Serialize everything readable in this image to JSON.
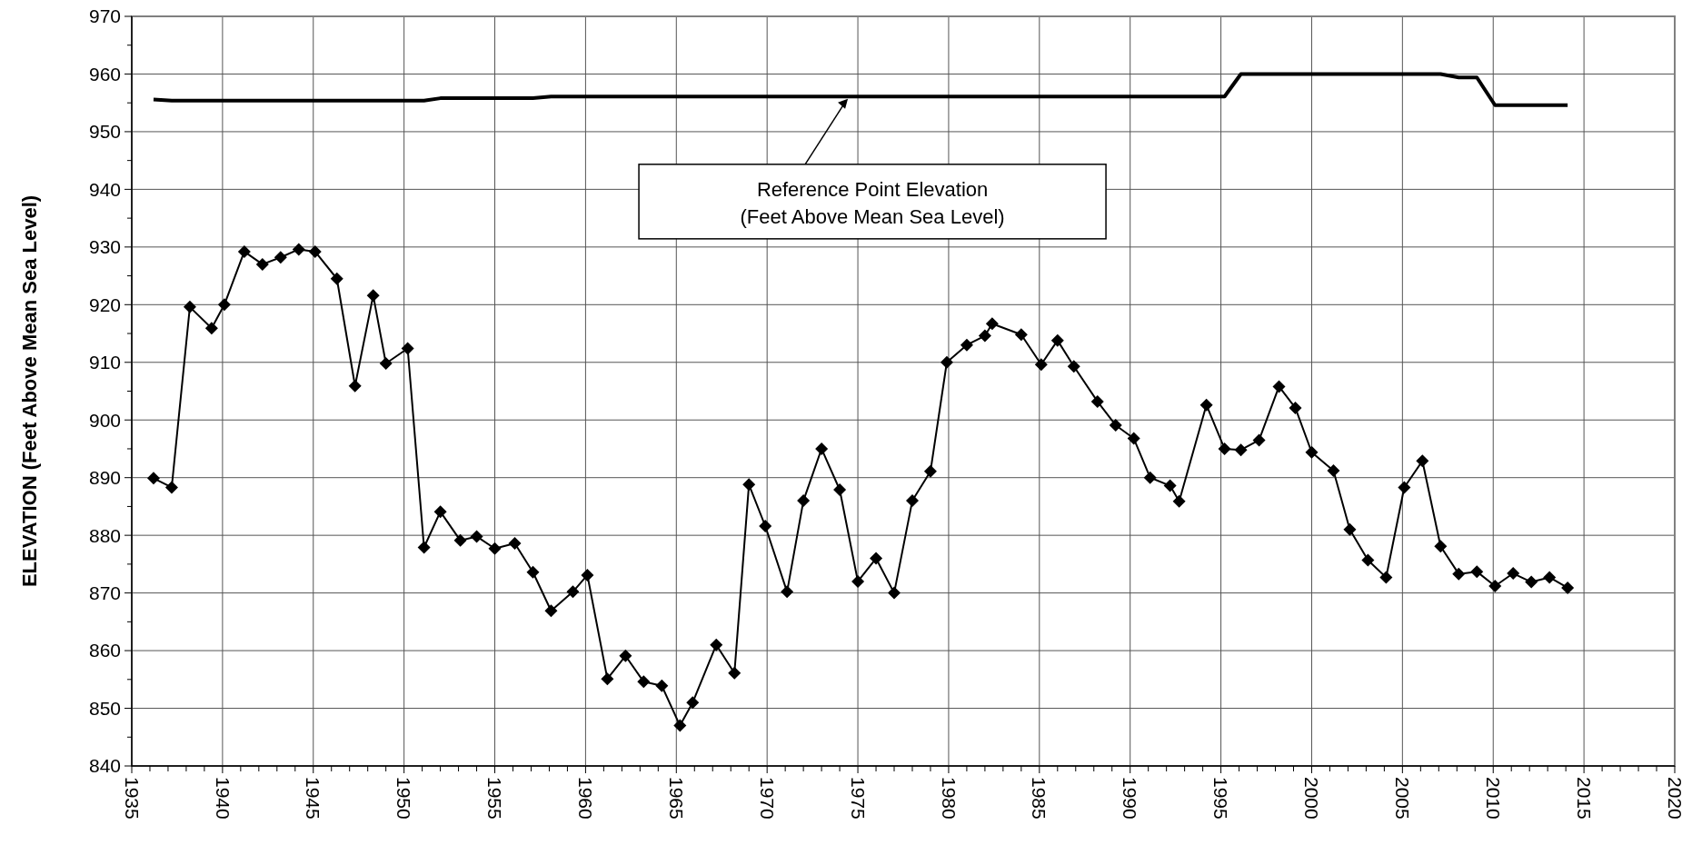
{
  "chart_data": {
    "type": "line",
    "ylabel": "ELEVATION (Feet Above Mean Sea Level)",
    "xlim": [
      1935,
      2020
    ],
    "xticks": [
      1935,
      1940,
      1945,
      1950,
      1955,
      1960,
      1965,
      1970,
      1975,
      1980,
      1985,
      1990,
      1995,
      2000,
      2005,
      2010,
      2015,
      2020
    ],
    "ylim": [
      840,
      970
    ],
    "yticks": [
      840,
      850,
      860,
      870,
      880,
      890,
      900,
      910,
      920,
      930,
      940,
      950,
      960,
      970
    ],
    "grid": true,
    "annotations": [
      {
        "text": "Reference Point Elevation\n(Feet Above Mean Sea Level)",
        "x": 1974.5,
        "y": 956
      }
    ],
    "series": [
      {
        "color": "#000000",
        "marker": "diamond",
        "x": [
          1936.2,
          1937.2,
          1938.2,
          1939.4,
          1940.1,
          1941.2,
          1942.2,
          1943.2,
          1944.2,
          1945.1,
          1946.3,
          1947.3,
          1948.3,
          1949.0,
          1950.2,
          1951.1,
          1952.0,
          1953.1,
          1954.0,
          1955.0,
          1956.1,
          1957.1,
          1958.1,
          1959.3,
          1960.1,
          1961.2,
          1962.2,
          1963.2,
          1964.2,
          1965.2,
          1965.9,
          1967.2,
          1968.2,
          1969.0,
          1969.9,
          1971.1,
          1972.0,
          1973.0,
          1974.0,
          1975.0,
          1976.0,
          1977.0,
          1978.0,
          1979.0,
          1979.9,
          1981.0,
          1982.0,
          1982.4,
          1984.0,
          1985.1,
          1986.0,
          1986.9,
          1988.2,
          1989.2,
          1990.2,
          1991.1,
          1992.2,
          1992.7,
          1994.2,
          1995.2,
          1996.1,
          1997.1,
          1998.2,
          1999.1,
          2000.0,
          2001.2,
          2002.1,
          2003.1,
          2004.1,
          2005.1,
          2006.1,
          2007.1,
          2008.1,
          2009.1,
          2010.1,
          2011.1,
          2012.1,
          2013.1,
          2014.1
        ],
        "values": [
          889.9,
          888.3,
          919.6,
          915.9,
          920.0,
          929.2,
          927.0,
          928.2,
          929.6,
          929.2,
          924.5,
          905.9,
          921.6,
          909.8,
          912.4,
          877.9,
          884.1,
          879.1,
          879.8,
          877.7,
          878.6,
          873.6,
          866.9,
          870.2,
          873.1,
          855.1,
          859.1,
          854.6,
          853.9,
          847.0,
          851.0,
          861.0,
          856.1,
          888.8,
          881.6,
          870.2,
          886.0,
          895.0,
          887.9,
          872.0,
          876.0,
          870.0,
          886.0,
          891.1,
          910.0,
          913.0,
          914.6,
          916.7,
          914.8,
          909.6,
          913.8,
          909.3,
          903.2,
          899.1,
          896.8,
          890.0,
          888.6,
          885.9,
          902.6,
          895.0,
          894.8,
          896.5,
          905.8,
          902.1,
          894.4,
          891.2,
          881.0,
          875.7,
          872.7,
          888.3,
          892.9,
          878.1,
          873.3,
          873.7,
          871.2,
          873.4,
          871.9,
          872.7,
          870.9
        ]
      },
      {
        "color": "#000000",
        "marker": "none",
        "x": [
          1936.2,
          1937.2,
          1951.1,
          1952.0,
          1957.1,
          1958.1,
          1995.2,
          1996.1,
          2007.1,
          2008.1,
          2009.1,
          2010.1,
          2014.1
        ],
        "values": [
          955.6,
          955.4,
          955.4,
          955.8,
          955.8,
          956.1,
          956.1,
          960.0,
          960.0,
          959.4,
          959.4,
          954.6,
          954.6
        ]
      }
    ]
  }
}
